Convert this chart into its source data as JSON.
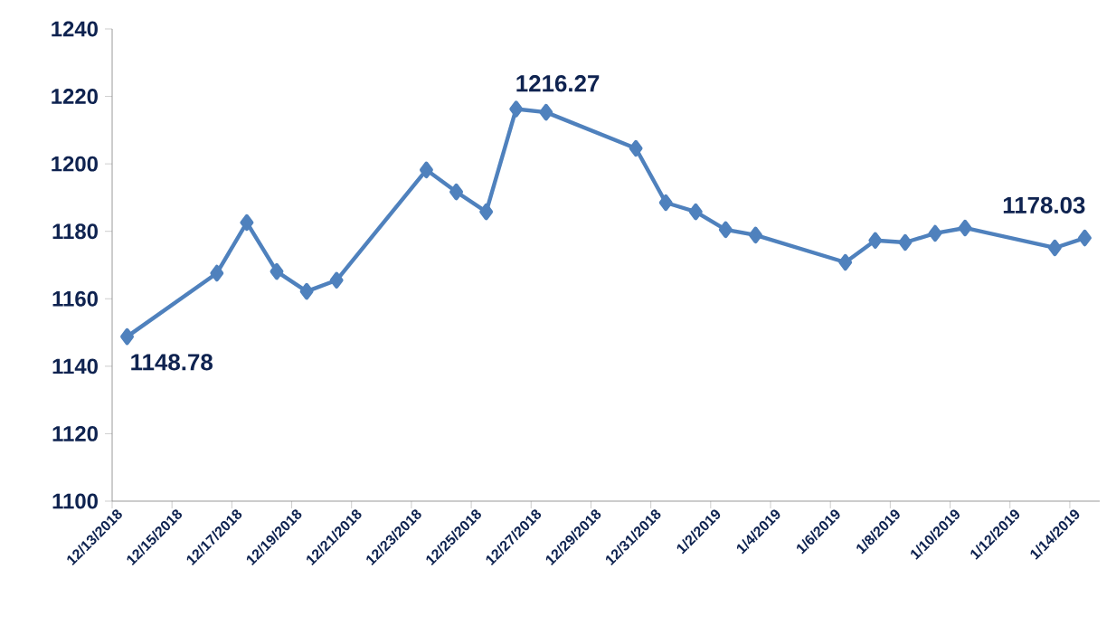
{
  "chart_data": {
    "type": "line",
    "color": "#4f81bd",
    "marker": "diamond",
    "line_style": "solid",
    "grid": false,
    "x": [
      "2018-12-13T12:00",
      "2018-12-16T12:00",
      "2018-12-17T12:00",
      "2018-12-18T12:00",
      "2018-12-19T12:00",
      "2018-12-20T12:00",
      "2018-12-23T12:00",
      "2018-12-24T12:00",
      "2018-12-25T12:00",
      "2018-12-26T12:00",
      "2018-12-27T12:00",
      "2018-12-30T12:00",
      "2018-12-31T12:00",
      "2019-01-01T12:00",
      "2019-01-02T12:00",
      "2019-01-03T12:00",
      "2019-01-06T12:00",
      "2019-01-07T12:00",
      "2019-01-08T12:00",
      "2019-01-09T12:00",
      "2019-01-10T12:00",
      "2019-01-13T12:00",
      "2019-01-14T12:00"
    ],
    "values": [
      1148.78,
      1167.6,
      1182.6,
      1168.1,
      1162.2,
      1165.5,
      1198.2,
      1191.7,
      1185.8,
      1216.27,
      1215.3,
      1204.6,
      1188.5,
      1185.8,
      1180.5,
      1178.9,
      1170.8,
      1177.3,
      1176.7,
      1179.4,
      1181.0,
      1175.1,
      1178.03
    ],
    "xlim": [
      "2018-12-13",
      "2019-01-15"
    ],
    "xticks": [
      {
        "value": "2018-12-13",
        "label": "12/13/2018"
      },
      {
        "value": "2018-12-15",
        "label": "12/15/2018"
      },
      {
        "value": "2018-12-17",
        "label": "12/17/2018"
      },
      {
        "value": "2018-12-19",
        "label": "12/19/2018"
      },
      {
        "value": "2018-12-21",
        "label": "12/21/2018"
      },
      {
        "value": "2018-12-23",
        "label": "12/23/2018"
      },
      {
        "value": "2018-12-25",
        "label": "12/25/2018"
      },
      {
        "value": "2018-12-27",
        "label": "12/27/2018"
      },
      {
        "value": "2018-12-29",
        "label": "12/29/2018"
      },
      {
        "value": "2018-12-31",
        "label": "12/31/2018"
      },
      {
        "value": "2019-01-02",
        "label": "1/2/2019"
      },
      {
        "value": "2019-01-04",
        "label": "1/4/2019"
      },
      {
        "value": "2019-01-06",
        "label": "1/6/2019"
      },
      {
        "value": "2019-01-08",
        "label": "1/8/2019"
      },
      {
        "value": "2019-01-10",
        "label": "1/10/2019"
      },
      {
        "value": "2019-01-12",
        "label": "1/12/2019"
      },
      {
        "value": "2019-01-14",
        "label": "1/14/2019"
      }
    ],
    "ylim": [
      1100,
      1240
    ],
    "yticks": [
      1100,
      1120,
      1140,
      1160,
      1180,
      1200,
      1220,
      1240
    ],
    "annotations": [
      {
        "text": "1148.78",
        "x": "2018-12-13T12:00",
        "y": 1148.78
      },
      {
        "text": "1216.27",
        "x": "2018-12-26T12:00",
        "y": 1216.27
      },
      {
        "text": "1178.03",
        "x": "2019-01-14T12:00",
        "y": 1178.03
      }
    ]
  }
}
